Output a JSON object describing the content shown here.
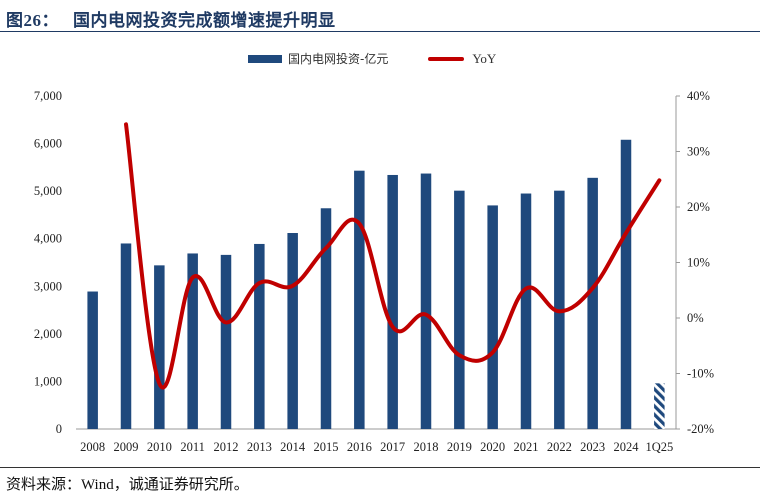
{
  "title": {
    "number": "图26：",
    "text": "国内电网投资完成额增速提升明显"
  },
  "source": "资料来源：Wind，诚通证券研究所。",
  "colors": {
    "bar": "#1f497d",
    "line": "#c00000",
    "title": "#1f3a63"
  },
  "chart_data": {
    "type": "bar+line",
    "categories": [
      "2008",
      "2009",
      "2010",
      "2011",
      "2012",
      "2013",
      "2014",
      "2015",
      "2016",
      "2017",
      "2018",
      "2019",
      "2020",
      "2021",
      "2022",
      "2023",
      "2024",
      "1Q25"
    ],
    "series": [
      {
        "name": "国内电网投资-亿元",
        "axis": "left",
        "type": "bar",
        "values": [
          2890,
          3900,
          3440,
          3690,
          3660,
          3890,
          4120,
          4640,
          5430,
          5340,
          5370,
          5010,
          4700,
          4950,
          5010,
          5280,
          6080,
          960
        ],
        "hatched_last": true
      },
      {
        "name": "YoY",
        "axis": "right",
        "type": "line",
        "values": [
          null,
          34.9,
          -11.8,
          7.3,
          -0.8,
          6.3,
          5.8,
          12.6,
          17.0,
          -1.6,
          0.6,
          -6.7,
          -6.2,
          5.3,
          1.2,
          5.4,
          15.3,
          24.8
        ]
      }
    ],
    "y_left": {
      "min": 0,
      "max": 7000,
      "ticks": [
        "0",
        "1,000",
        "2,000",
        "3,000",
        "4,000",
        "5,000",
        "6,000",
        "7,000"
      ]
    },
    "y_right": {
      "min": -20,
      "max": 40,
      "ticks": [
        "-20%",
        "-10%",
        "0%",
        "10%",
        "20%",
        "30%",
        "40%"
      ]
    },
    "legend": [
      "国内电网投资-亿元",
      "YoY"
    ]
  }
}
